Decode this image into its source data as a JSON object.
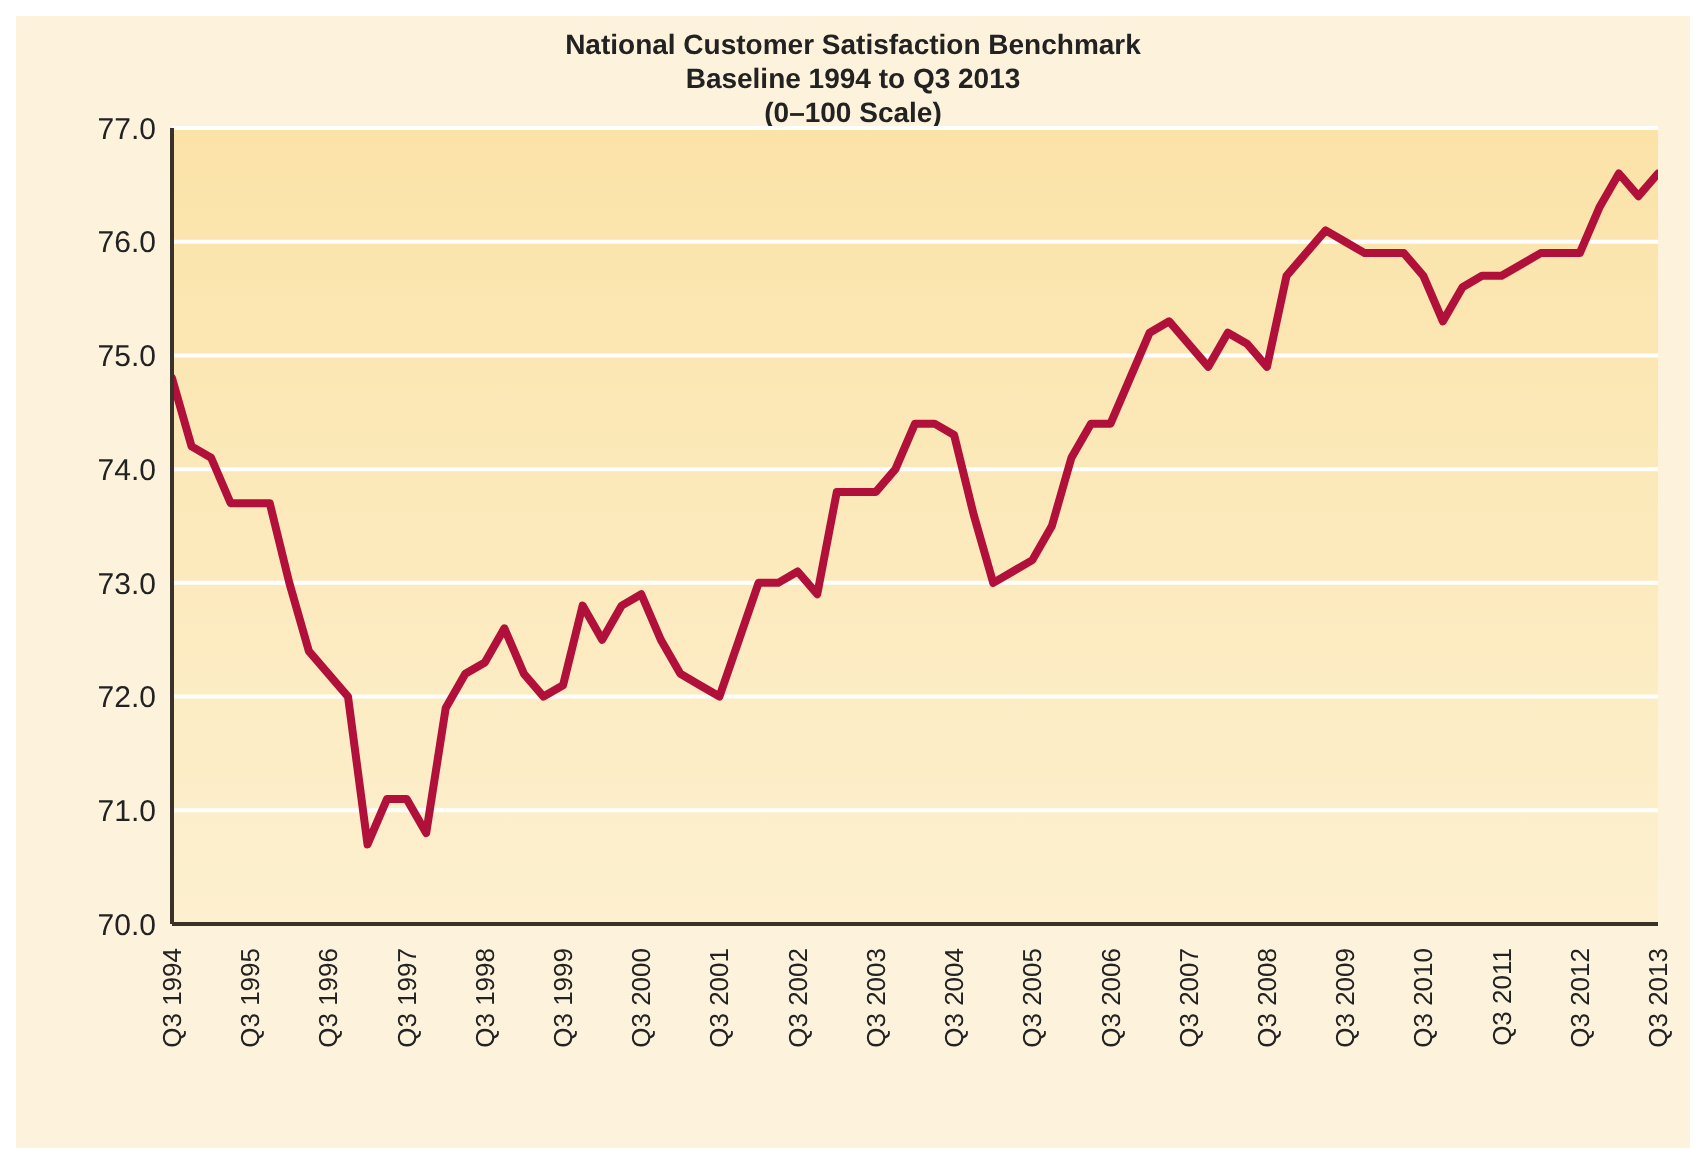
{
  "chart_data": {
    "type": "line",
    "title": "National Customer Satisfaction Benchmark",
    "subtitle": "Baseline 1994 to Q3 2013\n(0–100 Scale)",
    "categories": [
      "Q3 1994",
      null,
      null,
      null,
      "Q3 1995",
      null,
      null,
      null,
      "Q3 1996",
      null,
      null,
      null,
      "Q3 1997",
      null,
      null,
      null,
      "Q3 1998",
      null,
      null,
      null,
      "Q3 1999",
      null,
      null,
      null,
      "Q3 2000",
      null,
      null,
      null,
      "Q3 2001",
      null,
      null,
      null,
      "Q3 2002",
      null,
      null,
      null,
      "Q3 2003",
      null,
      null,
      null,
      "Q3 2004",
      null,
      null,
      null,
      "Q3 2005",
      null,
      null,
      null,
      "Q3 2006",
      null,
      null,
      null,
      "Q3 2007",
      null,
      null,
      null,
      "Q3 2008",
      null,
      null,
      null,
      "Q3 2009",
      null,
      null,
      null,
      "Q3 2010",
      null,
      null,
      null,
      "Q3 2011",
      null,
      null,
      null,
      "Q3 2012",
      null,
      null,
      null,
      "Q3 2013"
    ],
    "series": [
      {
        "color": "#b0103a",
        "values": [
          74.8,
          74.2,
          74.1,
          73.7,
          73.7,
          73.7,
          73.0,
          72.4,
          72.2,
          72.0,
          70.7,
          71.1,
          71.1,
          70.8,
          71.9,
          72.2,
          72.3,
          72.6,
          72.2,
          72.0,
          72.1,
          72.8,
          72.5,
          72.8,
          72.9,
          72.5,
          72.2,
          72.1,
          72.0,
          72.5,
          73.0,
          73.0,
          73.1,
          72.9,
          73.8,
          73.8,
          73.8,
          74.0,
          74.4,
          74.4,
          74.3,
          73.6,
          73.0,
          73.1,
          73.2,
          73.5,
          74.1,
          74.4,
          74.4,
          74.8,
          75.2,
          75.3,
          75.1,
          74.9,
          75.2,
          75.1,
          74.9,
          75.7,
          75.9,
          76.1,
          76.0,
          75.9,
          75.9,
          75.9,
          75.7,
          75.3,
          75.6,
          75.7,
          75.7,
          75.8,
          75.9,
          75.9,
          75.9,
          76.3,
          76.6,
          76.4,
          76.6
        ]
      }
    ],
    "ylim": [
      70,
      77
    ],
    "yticks": [
      {
        "value": 70,
        "label": "70.0"
      },
      {
        "value": 71,
        "label": "71.0"
      },
      {
        "value": 72,
        "label": "72.0"
      },
      {
        "value": 73,
        "label": "73.0"
      },
      {
        "value": 74,
        "label": "74.0"
      },
      {
        "value": 75,
        "label": "75.0"
      },
      {
        "value": 76,
        "label": "76.0"
      },
      {
        "value": 77,
        "label": "77.0"
      }
    ],
    "grid": "y",
    "legend": false,
    "marker": "none",
    "line_style": "solid"
  }
}
